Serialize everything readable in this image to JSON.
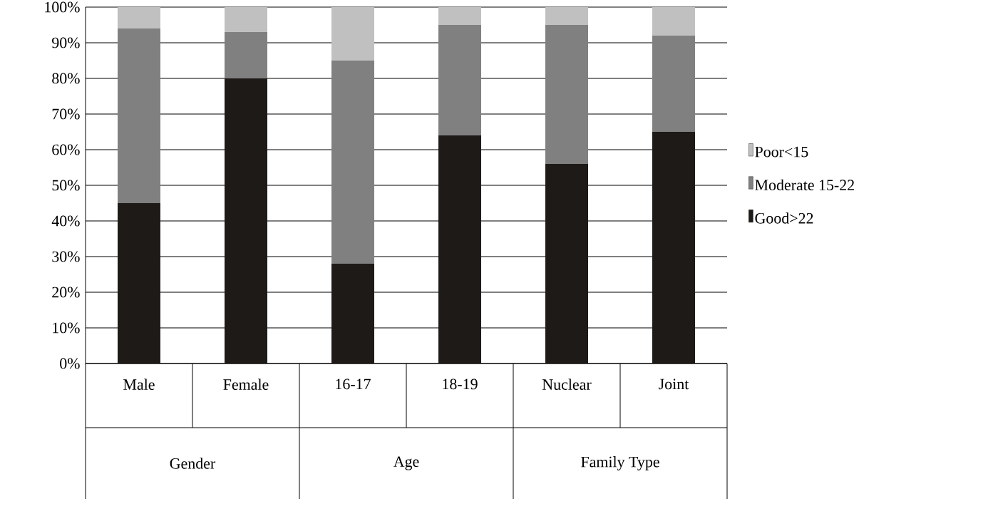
{
  "chart_data": {
    "type": "bar",
    "stacked": true,
    "categories": [
      "Male",
      "Female",
      "16-17",
      "18-19",
      "Nuclear",
      "Joint"
    ],
    "series": [
      {
        "name": "Good>22",
        "color": "#1e1a18",
        "values": [
          45,
          80,
          28,
          64,
          56,
          65
        ]
      },
      {
        "name": "Moderate 15-22",
        "color": "#808080",
        "values": [
          49,
          13,
          57,
          31,
          39,
          27
        ]
      },
      {
        "name": "Poor<15",
        "color": "#c0c0c0",
        "values": [
          6,
          7,
          15,
          5,
          5,
          8
        ]
      }
    ],
    "ylim": [
      0,
      100
    ],
    "yticks": [
      {
        "value": 0,
        "label": "0%"
      },
      {
        "value": 10,
        "label": "10%"
      },
      {
        "value": 20,
        "label": "20%"
      },
      {
        "value": 30,
        "label": "30%"
      },
      {
        "value": 40,
        "label": "40%"
      },
      {
        "value": 50,
        "label": "50%"
      },
      {
        "value": 60,
        "label": "60%"
      },
      {
        "value": 70,
        "label": "70%"
      },
      {
        "value": 80,
        "label": "80%"
      },
      {
        "value": 90,
        "label": "90%"
      },
      {
        "value": 100,
        "label": "100%"
      }
    ],
    "grid": "y",
    "legend": "right",
    "annotations": [
      "Gender",
      "Age",
      "Family Type"
    ]
  }
}
